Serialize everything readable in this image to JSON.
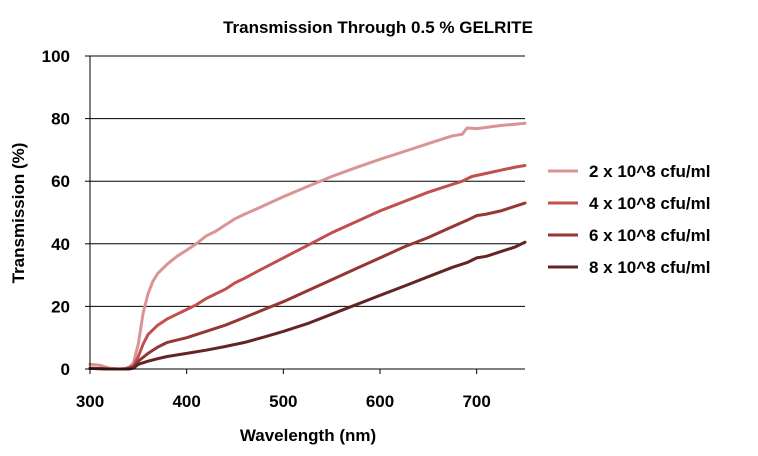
{
  "chart_data": {
    "type": "line",
    "title": "Transmission Through 0.5 % GELRITE",
    "xlabel": "Wavelength (nm)",
    "ylabel": "Transmission (%)",
    "xlim": [
      300,
      750
    ],
    "ylim": [
      0,
      100
    ],
    "xticks": [
      300,
      400,
      500,
      600,
      700
    ],
    "yticks": [
      0,
      20,
      40,
      60,
      80,
      100
    ],
    "grid": "horizontal",
    "legend_position": "right",
    "series": [
      {
        "name": "2 x 10^8 cfu/ml",
        "color": "#d99594",
        "points": [
          [
            300,
            1.5
          ],
          [
            310,
            1.2
          ],
          [
            320,
            0.3
          ],
          [
            330,
            0
          ],
          [
            340,
            0.3
          ],
          [
            345,
            2
          ],
          [
            350,
            8
          ],
          [
            355,
            18
          ],
          [
            360,
            24
          ],
          [
            365,
            28
          ],
          [
            370,
            30.5
          ],
          [
            380,
            33.5
          ],
          [
            390,
            36
          ],
          [
            400,
            38
          ],
          [
            410,
            40
          ],
          [
            420,
            42.5
          ],
          [
            430,
            44
          ],
          [
            440,
            46
          ],
          [
            450,
            48
          ],
          [
            460,
            49.5
          ],
          [
            475,
            51.5
          ],
          [
            500,
            55
          ],
          [
            525,
            58.3
          ],
          [
            550,
            61.5
          ],
          [
            575,
            64.3
          ],
          [
            600,
            67
          ],
          [
            625,
            69.5
          ],
          [
            650,
            72
          ],
          [
            675,
            74.5
          ],
          [
            685,
            75
          ],
          [
            690,
            77
          ],
          [
            700,
            76.8
          ],
          [
            710,
            77.2
          ],
          [
            725,
            77.8
          ],
          [
            740,
            78.2
          ],
          [
            750,
            78.5
          ]
        ]
      },
      {
        "name": "4 x 10^8 cfu/ml",
        "color": "#c0504d",
        "points": [
          [
            300,
            0.3
          ],
          [
            320,
            0
          ],
          [
            335,
            0
          ],
          [
            345,
            1
          ],
          [
            350,
            4
          ],
          [
            355,
            8
          ],
          [
            360,
            11
          ],
          [
            370,
            14
          ],
          [
            380,
            16
          ],
          [
            390,
            17.5
          ],
          [
            400,
            19
          ],
          [
            410,
            20.5
          ],
          [
            420,
            22.5
          ],
          [
            430,
            24
          ],
          [
            440,
            25.5
          ],
          [
            450,
            27.5
          ],
          [
            460,
            29
          ],
          [
            475,
            31.5
          ],
          [
            500,
            35.5
          ],
          [
            525,
            39.5
          ],
          [
            550,
            43.5
          ],
          [
            575,
            47
          ],
          [
            600,
            50.5
          ],
          [
            625,
            53.5
          ],
          [
            650,
            56.5
          ],
          [
            675,
            59
          ],
          [
            685,
            60
          ],
          [
            695,
            61.5
          ],
          [
            710,
            62.5
          ],
          [
            725,
            63.5
          ],
          [
            740,
            64.5
          ],
          [
            750,
            65
          ]
        ]
      },
      {
        "name": "6 x 10^8 cfu/ml",
        "color": "#953735",
        "points": [
          [
            300,
            0.2
          ],
          [
            320,
            0
          ],
          [
            340,
            0
          ],
          [
            345,
            0.5
          ],
          [
            350,
            2.5
          ],
          [
            360,
            5
          ],
          [
            370,
            7
          ],
          [
            380,
            8.5
          ],
          [
            400,
            10
          ],
          [
            420,
            12
          ],
          [
            440,
            14
          ],
          [
            460,
            16.5
          ],
          [
            480,
            19
          ],
          [
            500,
            21.5
          ],
          [
            525,
            25
          ],
          [
            550,
            28.5
          ],
          [
            575,
            32
          ],
          [
            600,
            35.5
          ],
          [
            625,
            39
          ],
          [
            650,
            42
          ],
          [
            675,
            45.5
          ],
          [
            690,
            47.5
          ],
          [
            700,
            49
          ],
          [
            710,
            49.5
          ],
          [
            725,
            50.5
          ],
          [
            740,
            52
          ],
          [
            750,
            53
          ]
        ]
      },
      {
        "name": "8 x 10^8 cfu/ml",
        "color": "#632523",
        "points": [
          [
            300,
            0.2
          ],
          [
            320,
            0
          ],
          [
            340,
            0
          ],
          [
            345,
            0.3
          ],
          [
            350,
            1.5
          ],
          [
            360,
            2.5
          ],
          [
            370,
            3.3
          ],
          [
            380,
            4
          ],
          [
            400,
            5
          ],
          [
            420,
            6
          ],
          [
            440,
            7.2
          ],
          [
            460,
            8.5
          ],
          [
            480,
            10.2
          ],
          [
            500,
            12
          ],
          [
            525,
            14.5
          ],
          [
            550,
            17.5
          ],
          [
            575,
            20.5
          ],
          [
            600,
            23.5
          ],
          [
            625,
            26.5
          ],
          [
            650,
            29.5
          ],
          [
            675,
            32.5
          ],
          [
            690,
            34
          ],
          [
            700,
            35.5
          ],
          [
            710,
            36
          ],
          [
            725,
            37.5
          ],
          [
            740,
            39
          ],
          [
            750,
            40.5
          ]
        ]
      }
    ]
  }
}
